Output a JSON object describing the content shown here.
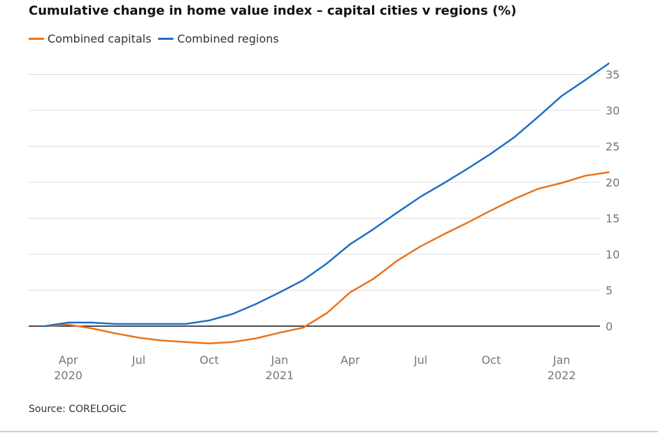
{
  "chart_data": {
    "type": "line",
    "title": "Cumulative change in home value index – capital cities v regions (%)",
    "source": "Source: CORELOGIC",
    "x": [
      "2020-03",
      "2020-04",
      "2020-05",
      "2020-06",
      "2020-07",
      "2020-08",
      "2020-09",
      "2020-10",
      "2020-11",
      "2020-12",
      "2021-01",
      "2021-02",
      "2021-03",
      "2021-04",
      "2021-05",
      "2021-06",
      "2021-07",
      "2021-08",
      "2021-09",
      "2021-10",
      "2021-11",
      "2021-12",
      "2022-01",
      "2022-02",
      "2022-03"
    ],
    "x_ticks": [
      {
        "month": "2020-04",
        "label": "Apr",
        "year": "2020"
      },
      {
        "month": "2020-07",
        "label": "Jul",
        "year": ""
      },
      {
        "month": "2020-10",
        "label": "Oct",
        "year": ""
      },
      {
        "month": "2021-01",
        "label": "Jan",
        "year": "2021"
      },
      {
        "month": "2021-04",
        "label": "Apr",
        "year": ""
      },
      {
        "month": "2021-07",
        "label": "Jul",
        "year": ""
      },
      {
        "month": "2021-10",
        "label": "Oct",
        "year": ""
      },
      {
        "month": "2022-01",
        "label": "Jan",
        "year": "2022"
      }
    ],
    "y_ticks": [
      0,
      5,
      10,
      15,
      20,
      25,
      30,
      35
    ],
    "ylim": [
      -3,
      38
    ],
    "legend_position": "top-left",
    "grid": true,
    "series": [
      {
        "name": "Combined capitals",
        "color": "#e8731c",
        "values": [
          0,
          0.2,
          -0.3,
          -1.0,
          -1.6,
          -2.0,
          -2.2,
          -2.4,
          -2.2,
          -1.7,
          -0.9,
          -0.2,
          1.8,
          4.7,
          6.6,
          9.1,
          11.1,
          12.8,
          14.4,
          16.1,
          17.7,
          19.1,
          19.9,
          20.9,
          21.4
        ]
      },
      {
        "name": "Combined regions",
        "color": "#1f6fc5",
        "values": [
          0,
          0.5,
          0.5,
          0.3,
          0.3,
          0.3,
          0.3,
          0.8,
          1.7,
          3.1,
          4.7,
          6.4,
          8.7,
          11.4,
          13.5,
          15.8,
          18.0,
          19.9,
          21.9,
          24.0,
          26.3,
          29.1,
          32.0,
          34.2,
          36.5
        ]
      }
    ]
  }
}
